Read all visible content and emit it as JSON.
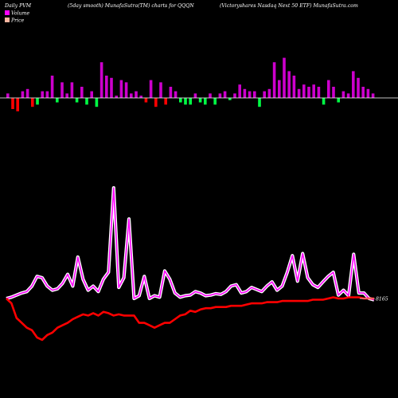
{
  "header": {
    "left": "Daily PVM",
    "center": "(5day smooth) MunafaSutra(TM) charts for QQQN",
    "right": "(Victoryshares Nasdaq Next 50  ETF) MunafaSutra.com"
  },
  "legend": {
    "volume_label": "Volume",
    "price_label": "Price",
    "volume_color": "#ff00ff",
    "price_color": "#ffb6a0"
  },
  "price_marker": "8165",
  "colors": {
    "background": "#000000",
    "volume_up": "#cc00cc",
    "volume_down_red": "#ff0000",
    "volume_down_green": "#00ff44",
    "volume_line": "#ff00ff",
    "price_line": "#ff0000",
    "baseline": "#ffffff"
  },
  "chart_data": {
    "type": "line",
    "volume_bars": [
      {
        "v": 2,
        "c": "up"
      },
      {
        "v": -5,
        "c": "red"
      },
      {
        "v": -6,
        "c": "red"
      },
      {
        "v": 3,
        "c": "up"
      },
      {
        "v": 4,
        "c": "up"
      },
      {
        "v": -4,
        "c": "red"
      },
      {
        "v": -3,
        "c": "green"
      },
      {
        "v": 3,
        "c": "up"
      },
      {
        "v": 3,
        "c": "up"
      },
      {
        "v": 10,
        "c": "up"
      },
      {
        "v": -2,
        "c": "green"
      },
      {
        "v": 7,
        "c": "up"
      },
      {
        "v": 2,
        "c": "up"
      },
      {
        "v": 7,
        "c": "up"
      },
      {
        "v": -2,
        "c": "green"
      },
      {
        "v": 5,
        "c": "up"
      },
      {
        "v": -3,
        "c": "green"
      },
      {
        "v": 3,
        "c": "up"
      },
      {
        "v": -4,
        "c": "green"
      },
      {
        "v": 16,
        "c": "up"
      },
      {
        "v": 10,
        "c": "up"
      },
      {
        "v": 9,
        "c": "up"
      },
      {
        "v": 1,
        "c": "up"
      },
      {
        "v": 8,
        "c": "up"
      },
      {
        "v": 7,
        "c": "up"
      },
      {
        "v": 2,
        "c": "up"
      },
      {
        "v": 3,
        "c": "up"
      },
      {
        "v": 1,
        "c": "up"
      },
      {
        "v": -2,
        "c": "red"
      },
      {
        "v": 8,
        "c": "up"
      },
      {
        "v": -4,
        "c": "red"
      },
      {
        "v": 7,
        "c": "up"
      },
      {
        "v": -3,
        "c": "red"
      },
      {
        "v": 5,
        "c": "up"
      },
      {
        "v": 3,
        "c": "up"
      },
      {
        "v": -2,
        "c": "green"
      },
      {
        "v": -3,
        "c": "green"
      },
      {
        "v": -3,
        "c": "green"
      },
      {
        "v": 2,
        "c": "up"
      },
      {
        "v": -2,
        "c": "green"
      },
      {
        "v": -3,
        "c": "green"
      },
      {
        "v": 2,
        "c": "up"
      },
      {
        "v": -3,
        "c": "green"
      },
      {
        "v": 2,
        "c": "up"
      },
      {
        "v": 3,
        "c": "up"
      },
      {
        "v": -1,
        "c": "green"
      },
      {
        "v": 2,
        "c": "up"
      },
      {
        "v": 6,
        "c": "up"
      },
      {
        "v": 4,
        "c": "up"
      },
      {
        "v": 3,
        "c": "up"
      },
      {
        "v": 3,
        "c": "up"
      },
      {
        "v": -4,
        "c": "green"
      },
      {
        "v": 3,
        "c": "up"
      },
      {
        "v": 4,
        "c": "up"
      },
      {
        "v": 16,
        "c": "up"
      },
      {
        "v": 8,
        "c": "up"
      },
      {
        "v": 18,
        "c": "up"
      },
      {
        "v": 12,
        "c": "up"
      },
      {
        "v": 10,
        "c": "up"
      },
      {
        "v": 4,
        "c": "up"
      },
      {
        "v": 6,
        "c": "up"
      },
      {
        "v": 5,
        "c": "up"
      },
      {
        "v": 6,
        "c": "up"
      },
      {
        "v": 5,
        "c": "up"
      },
      {
        "v": -3,
        "c": "green"
      },
      {
        "v": 8,
        "c": "up"
      },
      {
        "v": 5,
        "c": "up"
      },
      {
        "v": -2,
        "c": "green"
      },
      {
        "v": 3,
        "c": "up"
      },
      {
        "v": 2,
        "c": "up"
      },
      {
        "v": 12,
        "c": "up"
      },
      {
        "v": 9,
        "c": "up"
      },
      {
        "v": 5,
        "c": "up"
      },
      {
        "v": 4,
        "c": "up"
      },
      {
        "v": 2,
        "c": "up"
      }
    ],
    "volume_line": [
      100,
      102,
      105,
      108,
      110,
      118,
      132,
      130,
      118,
      112,
      114,
      122,
      135,
      118,
      160,
      128,
      112,
      118,
      110,
      128,
      138,
      260,
      116,
      130,
      215,
      100,
      104,
      132,
      100,
      104,
      102,
      140,
      128,
      108,
      102,
      104,
      105,
      110,
      108,
      104,
      105,
      107,
      106,
      110,
      118,
      120,
      108,
      110,
      116,
      113,
      110,
      118,
      124,
      112,
      118,
      138,
      162,
      125,
      165,
      130,
      120,
      116,
      124,
      132,
      138,
      105,
      112,
      104,
      164,
      108,
      108,
      100,
      98
    ],
    "price_line": [
      100,
      96,
      84,
      80,
      76,
      74,
      68,
      66,
      70,
      72,
      76,
      78,
      80,
      83,
      85,
      87,
      86,
      88,
      86,
      89,
      88,
      86,
      87,
      86,
      86,
      86,
      80,
      80,
      78,
      76,
      78,
      80,
      80,
      83,
      86,
      87,
      90,
      89,
      91,
      92,
      92,
      93,
      93,
      93,
      94,
      94,
      94,
      95,
      96,
      96,
      96,
      97,
      97,
      97,
      98,
      98,
      98,
      98,
      98,
      98,
      99,
      99,
      99,
      100,
      101,
      100,
      100,
      101,
      101,
      101,
      100,
      100,
      100
    ]
  }
}
